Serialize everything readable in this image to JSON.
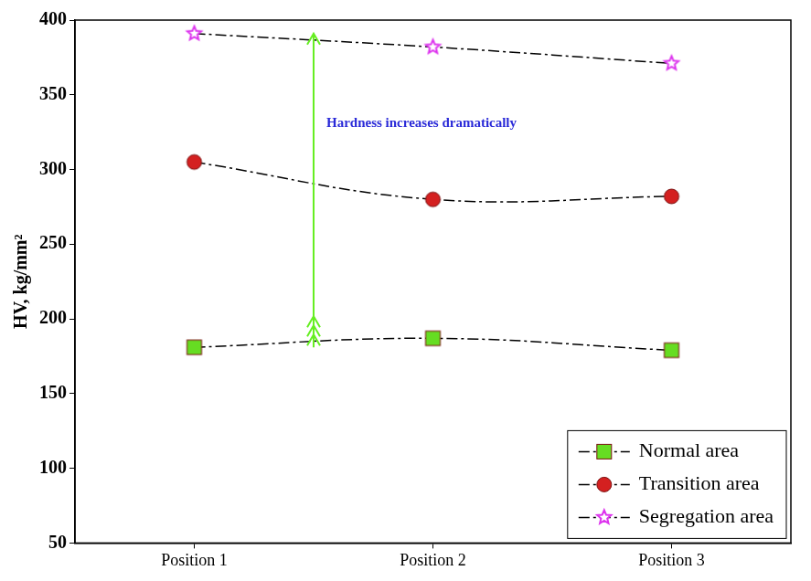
{
  "chart_data": {
    "type": "line",
    "y_label": "HV, kg/mm²",
    "categories": [
      "Position 1",
      "Position 2",
      "Position 3"
    ],
    "series": [
      {
        "name": "Normal area",
        "color": "#66dd22",
        "marker": "square",
        "values": [
          181,
          187,
          179
        ]
      },
      {
        "name": "Transition area",
        "color": "#d42020",
        "marker": "circle",
        "values": [
          305,
          280,
          282
        ]
      },
      {
        "name": "Segregation area",
        "color": "#dd33ee",
        "marker": "star",
        "values": [
          391,
          382,
          371
        ]
      }
    ],
    "ylim": [
      50,
      400
    ],
    "yticks": [
      50,
      100,
      150,
      200,
      250,
      300,
      350,
      400
    ],
    "grid": false,
    "legend": "lower right",
    "line_style": "dashdot",
    "annotations": [
      {
        "text": "Hardness increases dramatically",
        "color": "#2a2ad8"
      }
    ]
  }
}
